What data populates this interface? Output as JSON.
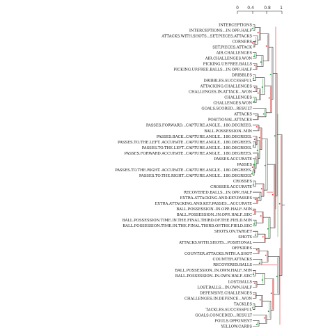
{
  "scale": {
    "ticks": [
      "0",
      "0.4",
      "0.8",
      "1"
    ]
  },
  "leaves": [
    "INTERCEPTIONS",
    "INTERCEPTIONS...IN.OPP..HALF",
    "ATTACKS.WITH.SHOTS...SET.PIECES.ATTACKS",
    "CORNERS",
    "SET.PIECES.ATTACK",
    "AIR.CHALLENGES",
    "AIR.CHALLENGES.WON",
    "PICKING.UP.FREE.BALLS",
    "PICKING.UP.FREE.BALLS...IN.OPP..HALF",
    "DRIBBLES",
    "DRIBBLES.SUCCESSFUL",
    "ATTACKING.CHALLENGES",
    "CHALLENGES.IN.ATTACK...WON",
    "CHALLENGES",
    "CHALLENGES.WON",
    "GOALS.SCORED...RESULT",
    "ATTACKS",
    "POSITIONAL.ATTACKS",
    "PASSES.FORWARD...CAPTURE.ANGLE...180.DEGREES.",
    "BALL.POSSESSION..MIN",
    "PASSES.BACK..CAPTURE.ANGLE...180.DEGREES.",
    "PASSES.TO.THE.LEFT..ACCURATE..CAPTURE.ANGLE...180.DEGREES.",
    "PASSES.TO.THE.LEFT..CAPTURE.ANGLE...180.DEGREES.",
    "PASSES.FORWARD.ACCURATE..CAPTURE.ANGLE...180.DEGREES.",
    "PASSES.ACCURATE",
    "PASSES",
    "PASSES.TO.THE.RIGHT..ACCURATE..CAPTURE.ANGLE...180.DEGREES.",
    "PASSES.TO.THE.RIGHT..CAPTURE.ANGLE...180.DEGREES.",
    "CROSSES",
    "CROSSES.ACCURATE",
    "RECOVERED.BALLS...IN.OPP..HALF",
    "EXTRA.ATTACKING.AND.KEY.PASSES",
    "EXTRA.ATTACKING.AND.KEY.PASSES...ACCURATE",
    "BALL.POSSESSION..IN.OPP..HALF..MIN",
    "BALL.POSSESSION..IN.OPP..HALF..SEC",
    "BALL.POSSESSION.TIME.IN.THE.FINAL.THIRD.OF.THE.FIELD.MIN",
    "BALL.POSSESSION.TIME.IN.THE.FINAL.THIRD.OF.THE.FIELD.SEC",
    "SHOTS.ON.TARGET",
    "SHOTS",
    "ATTACKS.WITH.SHOTS...POSITIONAL",
    "OFFSIDES",
    "COUNTER.ATTACKS.WITH.A.SHOT",
    "COUNTER.ATTACKS",
    "RECOVERED.BALLS",
    "BALL.POSSESSION..IN.OWN.HALF..MIN",
    "BALL.POSSESSION..IN.OWN.HALF..SEC",
    "LOST.BALLS",
    "LOST.BALLS...IN.OWN.HALF",
    "DEFENSIVE.CHALLENGES",
    "CHALLENGES.IN.DEFENCE...WON",
    "TACKLES",
    "TACKLES.SUCCESSFUL",
    "GOALS.CONCEDED...RESULT",
    "FOULS.OPPONENT",
    "YELLOW.CARDS"
  ],
  "colors": {
    "black": "#111111",
    "red": "#e03030",
    "green": "#2e9e3e"
  }
}
